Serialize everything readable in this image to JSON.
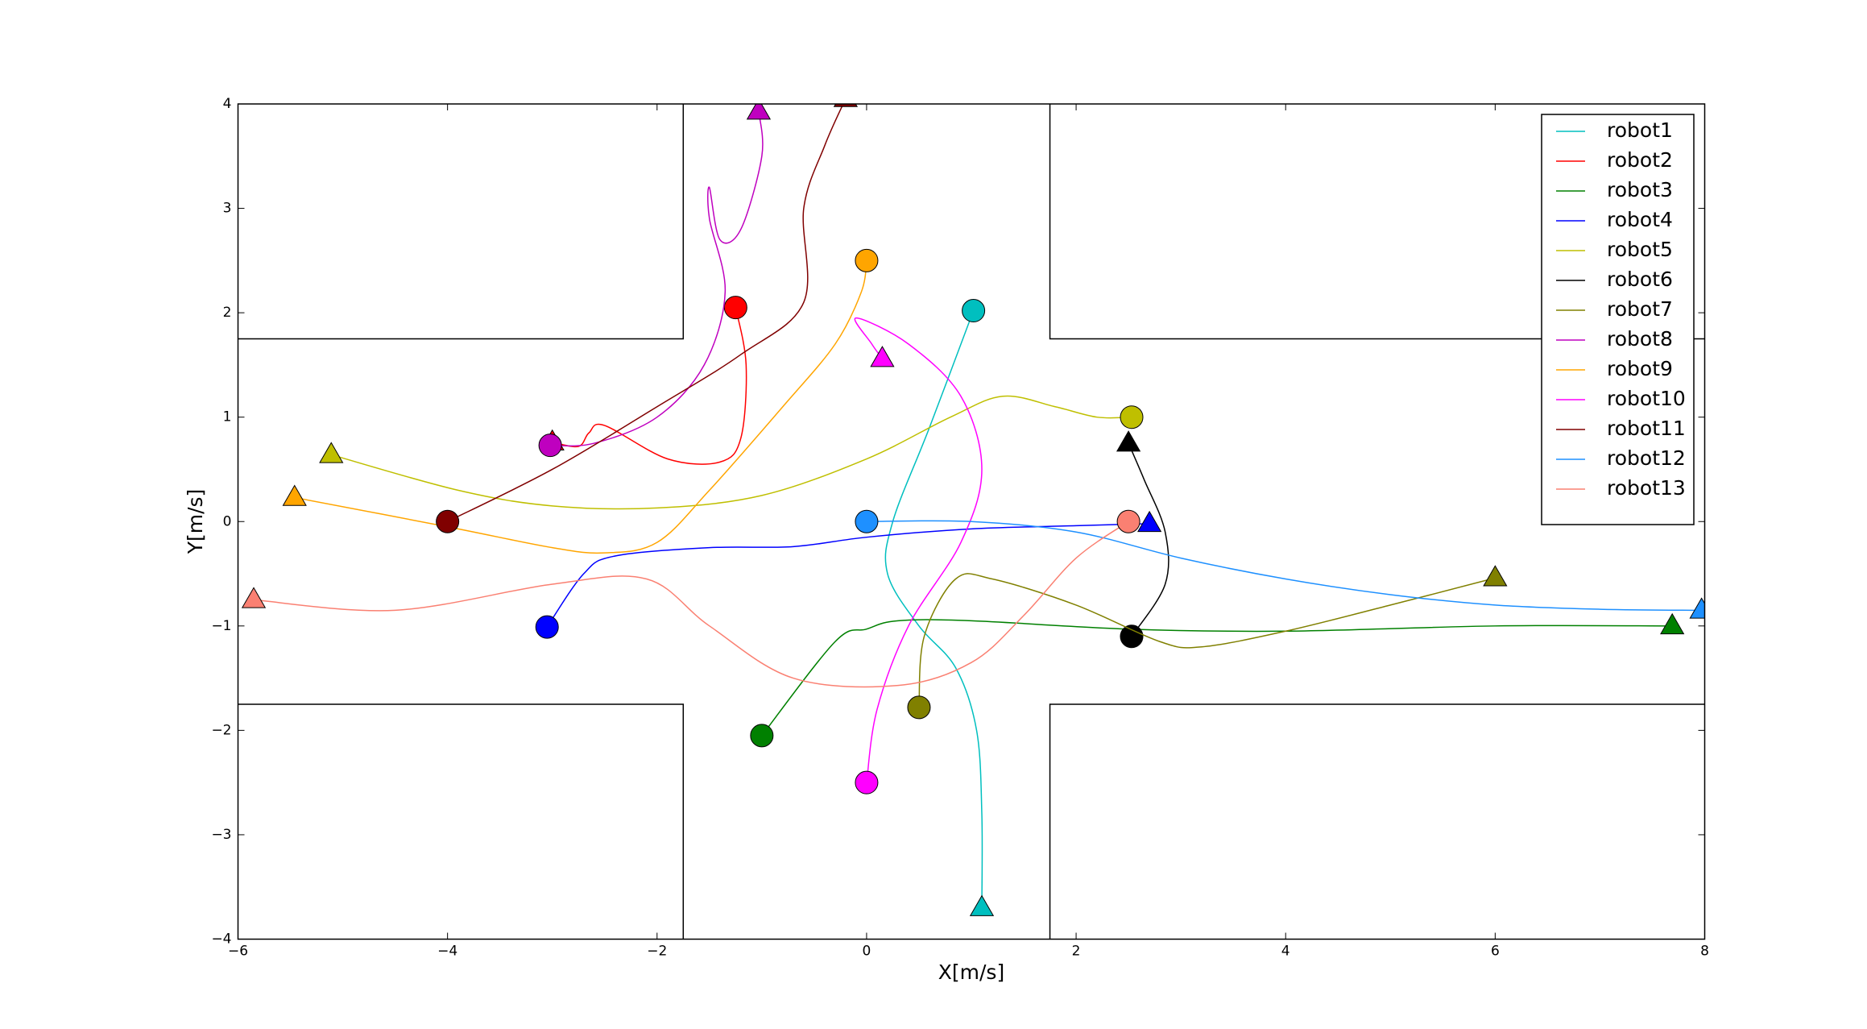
{
  "chart_data": {
    "type": "line",
    "xlabel": "X[m/s]",
    "ylabel": "Y[m/s]",
    "xlim": [
      -6,
      8
    ],
    "ylim": [
      -4,
      4
    ],
    "xticks": [
      {
        "value": -6,
        "label": "−6"
      },
      {
        "value": -4,
        "label": "−4"
      },
      {
        "value": -2,
        "label": "−2"
      },
      0,
      2,
      4,
      6,
      8
    ],
    "yticks": [
      {
        "value": -4,
        "label": "−4"
      },
      {
        "value": -3,
        "label": "−3"
      },
      {
        "value": -2,
        "label": "−2"
      },
      {
        "value": -1,
        "label": "−1"
      },
      0,
      1,
      2,
      3,
      4
    ],
    "grid": false,
    "legend": "upper right",
    "walls": [
      {
        "x": [
          -6,
          -1.75,
          -1.75
        ],
        "y": [
          1.75,
          1.75,
          4
        ]
      },
      {
        "x": [
          1.75,
          1.75,
          8
        ],
        "y": [
          4,
          1.75,
          1.75
        ]
      },
      {
        "x": [
          -6,
          -1.75,
          -1.75
        ],
        "y": [
          -1.75,
          -1.75,
          -4
        ]
      },
      {
        "x": [
          1.75,
          1.75,
          8
        ],
        "y": [
          -4,
          -1.75,
          -1.75
        ]
      }
    ],
    "series": [
      {
        "name": "robot1",
        "color": "#00bfbf",
        "x": [
          1.02,
          0.6,
          0.25,
          0.2,
          0.5,
          0.85,
          1.05,
          1.1,
          1.1
        ],
        "y": [
          2.02,
          0.9,
          0.0,
          -0.5,
          -1.0,
          -1.4,
          -2.0,
          -2.8,
          -3.7
        ]
      },
      {
        "name": "robot2",
        "color": "#ff0000",
        "x": [
          -1.25,
          -1.15,
          -1.2,
          -1.4,
          -1.9,
          -2.5,
          -2.65,
          -2.75,
          -3.0
        ],
        "y": [
          2.05,
          1.5,
          0.8,
          0.57,
          0.6,
          0.92,
          0.85,
          0.72,
          0.76
        ]
      },
      {
        "name": "robot3",
        "color": "#008000",
        "x": [
          -1.0,
          -0.3,
          0.0,
          0.3,
          1.0,
          2.5,
          4.0,
          6.0,
          7.69
        ],
        "y": [
          -2.05,
          -1.15,
          -1.03,
          -0.95,
          -0.95,
          -1.03,
          -1.05,
          -1.0,
          -1.0
        ]
      },
      {
        "name": "robot4",
        "color": "#0000ff",
        "x": [
          -3.05,
          -2.7,
          -2.4,
          -1.5,
          -0.7,
          0.0,
          1.0,
          2.0,
          2.7
        ],
        "y": [
          -1.01,
          -0.5,
          -0.33,
          -0.25,
          -0.24,
          -0.15,
          -0.07,
          -0.04,
          -0.02
        ]
      },
      {
        "name": "robot5",
        "color": "#bfbf00",
        "x": [
          2.53,
          2.2,
          1.8,
          1.3,
          0.8,
          0.0,
          -1.0,
          -2.0,
          -3.0,
          -3.9,
          -5.11
        ],
        "y": [
          1.0,
          1.0,
          1.1,
          1.2,
          1.0,
          0.6,
          0.25,
          0.13,
          0.15,
          0.3,
          0.64
        ]
      },
      {
        "name": "robot6",
        "color": "#000000",
        "x": [
          2.53,
          2.85,
          2.85,
          2.65,
          2.5
        ],
        "y": [
          -1.1,
          -0.6,
          -0.1,
          0.4,
          0.75
        ]
      },
      {
        "name": "robot7",
        "color": "#808000",
        "x": [
          0.5,
          0.55,
          0.85,
          1.2,
          2.0,
          2.8,
          3.2,
          4.0,
          5.0,
          6.0
        ],
        "y": [
          -1.78,
          -1.1,
          -0.55,
          -0.55,
          -0.8,
          -1.15,
          -1.2,
          -1.05,
          -0.8,
          -0.54
        ]
      },
      {
        "name": "robot8",
        "color": "#bf00bf",
        "x": [
          -3.02,
          -2.6,
          -2.0,
          -1.55,
          -1.35,
          -1.5,
          -1.5,
          -1.4,
          -1.2,
          -1.0,
          -1.03
        ],
        "y": [
          0.73,
          0.75,
          1.0,
          1.5,
          2.2,
          2.9,
          3.2,
          2.7,
          2.8,
          3.5,
          3.93
        ]
      },
      {
        "name": "robot9",
        "color": "#ffa500",
        "x": [
          0.0,
          -0.05,
          -0.3,
          -0.8,
          -1.5,
          -2.0,
          -2.5,
          -3.0,
          -4.0,
          -5.46
        ],
        "y": [
          2.5,
          2.2,
          1.7,
          1.1,
          0.3,
          -0.2,
          -0.3,
          -0.25,
          -0.05,
          0.23
        ]
      },
      {
        "name": "robot10",
        "color": "#ff00ff",
        "x": [
          0.0,
          0.1,
          0.4,
          0.9,
          1.1,
          0.9,
          0.4,
          -0.1,
          0.05,
          0.15
        ],
        "y": [
          -2.5,
          -1.8,
          -1.0,
          -0.2,
          0.5,
          1.2,
          1.7,
          1.95,
          1.7,
          1.56
        ]
      },
      {
        "name": "robot11",
        "color": "#800000",
        "x": [
          -4.0,
          -3.0,
          -2.0,
          -1.2,
          -0.6,
          -0.6,
          -0.4,
          -0.2
        ],
        "y": [
          0.0,
          0.5,
          1.1,
          1.6,
          2.1,
          3.0,
          3.6,
          4.05
        ]
      },
      {
        "name": "robot12",
        "color": "#1e90ff",
        "x": [
          0.0,
          1.0,
          2.0,
          3.0,
          4.0,
          5.0,
          6.0,
          7.0,
          7.97
        ],
        "y": [
          0.0,
          0.0,
          -0.1,
          -0.35,
          -0.55,
          -0.7,
          -0.8,
          -0.84,
          -0.85
        ]
      },
      {
        "name": "robot13",
        "color": "#fa8072",
        "x": [
          2.5,
          2.0,
          1.5,
          1.0,
          0.3,
          -0.7,
          -1.5,
          -2.1,
          -3.0,
          -4.5,
          -5.85
        ],
        "y": [
          0.0,
          -0.35,
          -0.9,
          -1.35,
          -1.57,
          -1.5,
          -1.0,
          -0.55,
          -0.6,
          -0.85,
          -0.75
        ]
      }
    ]
  }
}
